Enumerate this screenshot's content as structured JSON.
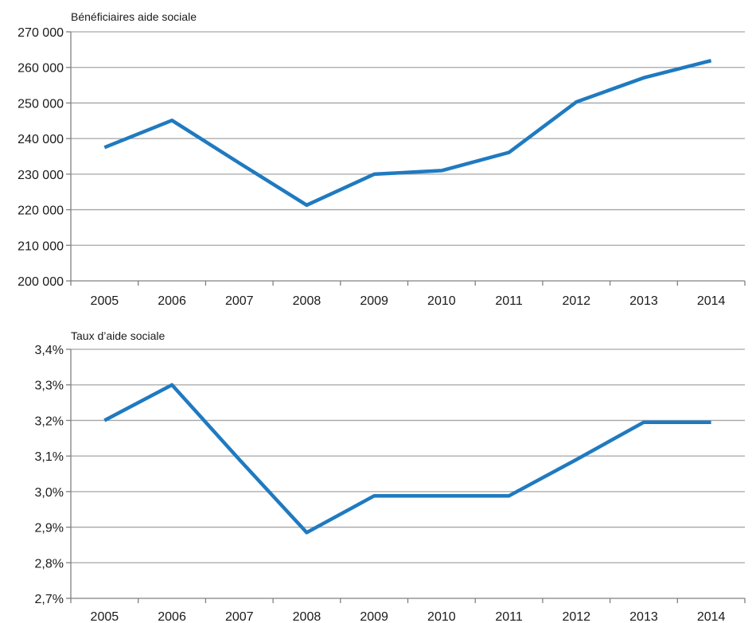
{
  "chart_data": [
    {
      "type": "line",
      "title": "Bénéficiaires aide sociale",
      "categories": [
        "2005",
        "2006",
        "2007",
        "2008",
        "2009",
        "2010",
        "2011",
        "2012",
        "2013",
        "2014"
      ],
      "y_tick_labels": [
        "270 000",
        "260 000",
        "250 000",
        "240 000",
        "230 000",
        "220 000",
        "210 000",
        "200 000"
      ],
      "ylim": [
        200000,
        270000
      ],
      "grid": true,
      "series": [
        {
          "values": [
            237500,
            245100,
            233100,
            221300,
            230000,
            231000,
            236100,
            250300,
            257100,
            261900
          ]
        }
      ],
      "line_color": "#1f7ac0"
    },
    {
      "type": "line",
      "title": "Taux d’aide sociale",
      "categories": [
        "2005",
        "2006",
        "2007",
        "2008",
        "2009",
        "2010",
        "2011",
        "2012",
        "2013",
        "2014"
      ],
      "y_tick_labels": [
        "3,4%",
        "3,3%",
        "3,2%",
        "3,1%",
        "3,0%",
        "2,9%",
        "2,8%",
        "2,7%"
      ],
      "ylim": [
        2.7,
        3.4
      ],
      "grid": true,
      "series": [
        {
          "values": [
            3.2,
            3.3,
            3.09,
            2.885,
            2.988,
            2.988,
            2.988,
            3.09,
            3.195,
            3.195
          ]
        }
      ],
      "line_color": "#1f7ac0"
    }
  ]
}
